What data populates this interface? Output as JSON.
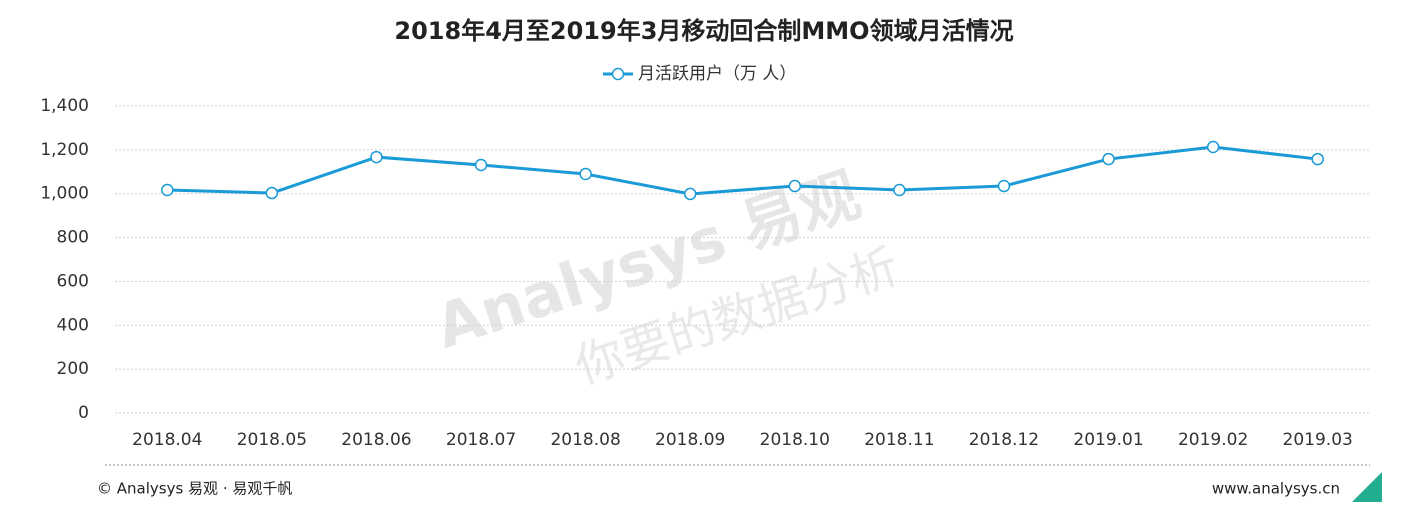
{
  "chart_data": {
    "type": "line",
    "title": "2018年4月至2019年3月移动回合制MMO领域月活情况",
    "categories": [
      "2018.04",
      "2018.05",
      "2018.06",
      "2018.07",
      "2018.08",
      "2018.09",
      "2018.10",
      "2018.11",
      "2018.12",
      "2019.01",
      "2019.02",
      "2019.03"
    ],
    "series": [
      {
        "name": "月活跃用户（万 人）",
        "color": "#1a9ad6",
        "values": [
          1017,
          1003,
          1167,
          1131,
          1090,
          999,
          1035,
          1017,
          1035,
          1158,
          1213,
          1158
        ]
      }
    ],
    "ylim": [
      0,
      1400
    ],
    "yticks": [
      0,
      200,
      400,
      600,
      800,
      {
        "value": 1000,
        "label": "1,000"
      },
      {
        "value": 1200,
        "label": "1,200"
      },
      {
        "value": 1400,
        "label": "1,400"
      }
    ],
    "grid": true,
    "legend": "top"
  },
  "footer": {
    "source": "© Analysys 易观 · 易观千帆",
    "website": "www.analysys.cn"
  },
  "watermark": {
    "brand": "Analysys 易观",
    "slogan": "你要的数据分析"
  }
}
